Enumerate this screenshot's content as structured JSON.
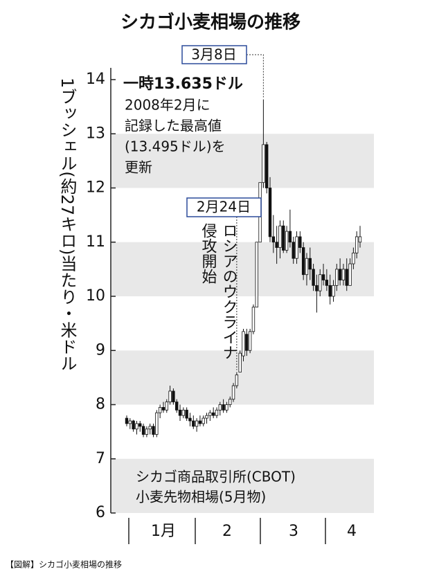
{
  "title": "シカゴ小麦相場の推移",
  "caption": "【図解】シカゴ小麦相場の推移",
  "chart_data": {
    "type": "candlestick",
    "y_label": "1ブッシェル(約27キロ)当たり・米ドル",
    "ylim": [
      6,
      14
    ],
    "yticks": [
      6,
      7,
      8,
      9,
      10,
      11,
      12,
      13,
      14
    ],
    "x_labels": [
      "1月",
      "2",
      "3",
      "4"
    ],
    "annotations": {
      "peak_date": "3月8日",
      "peak_value": "一時13.635ドル",
      "peak_note": [
        "2008年2月に",
        "記録した最高値",
        "(13.495ドル)を",
        "更新"
      ],
      "invasion_date": "2月24日",
      "invasion_note": [
        "ロシアのウクライナ",
        "侵攻開始"
      ]
    },
    "source": [
      "シカゴ商品取引所(CBOT)",
      "小麦先物相場(5月物)"
    ],
    "candles": [
      [
        7.75,
        7.8,
        7.6,
        7.65
      ],
      [
        7.65,
        7.75,
        7.55,
        7.7
      ],
      [
        7.7,
        7.72,
        7.5,
        7.55
      ],
      [
        7.55,
        7.7,
        7.45,
        7.65
      ],
      [
        7.65,
        7.7,
        7.5,
        7.6
      ],
      [
        7.6,
        7.65,
        7.4,
        7.45
      ],
      [
        7.45,
        7.6,
        7.4,
        7.55
      ],
      [
        7.55,
        7.65,
        7.45,
        7.6
      ],
      [
        7.6,
        7.65,
        7.4,
        7.45
      ],
      [
        7.45,
        7.9,
        7.4,
        7.85
      ],
      [
        7.85,
        8.0,
        7.75,
        7.95
      ],
      [
        7.95,
        8.05,
        7.85,
        7.9
      ],
      [
        7.9,
        8.1,
        7.85,
        8.05
      ],
      [
        8.05,
        8.35,
        8.0,
        8.25
      ],
      [
        8.25,
        8.3,
        8.0,
        8.05
      ],
      [
        8.05,
        8.1,
        7.85,
        7.9
      ],
      [
        7.9,
        8.0,
        7.7,
        7.8
      ],
      [
        7.8,
        7.95,
        7.75,
        7.9
      ],
      [
        7.9,
        7.95,
        7.7,
        7.75
      ],
      [
        7.75,
        7.85,
        7.6,
        7.7
      ],
      [
        7.7,
        7.8,
        7.55,
        7.6
      ],
      [
        7.6,
        7.75,
        7.5,
        7.7
      ],
      [
        7.7,
        7.8,
        7.6,
        7.65
      ],
      [
        7.65,
        7.8,
        7.6,
        7.75
      ],
      [
        7.75,
        7.85,
        7.65,
        7.8
      ],
      [
        7.8,
        7.9,
        7.7,
        7.85
      ],
      [
        7.85,
        7.95,
        7.75,
        7.8
      ],
      [
        7.8,
        7.95,
        7.75,
        7.9
      ],
      [
        7.9,
        8.05,
        7.8,
        8.0
      ],
      [
        8.0,
        8.1,
        7.85,
        7.9
      ],
      [
        7.9,
        8.05,
        7.85,
        8.0
      ],
      [
        8.0,
        8.15,
        7.95,
        8.1
      ],
      [
        8.1,
        8.4,
        8.05,
        8.35
      ],
      [
        8.35,
        8.6,
        8.3,
        8.55
      ],
      [
        8.6,
        9.0,
        8.6,
        8.95
      ],
      [
        8.9,
        9.4,
        8.8,
        9.35
      ],
      [
        9.3,
        9.4,
        8.9,
        9.0
      ],
      [
        9.0,
        9.4,
        8.95,
        9.35
      ],
      [
        9.35,
        9.85,
        9.3,
        9.8
      ],
      [
        9.8,
        11.0,
        9.8,
        11.0
      ],
      [
        11.0,
        12.1,
        11.0,
        12.1
      ],
      [
        12.1,
        13.635,
        12.0,
        12.8
      ],
      [
        12.8,
        12.85,
        11.9,
        12.0
      ],
      [
        12.0,
        12.2,
        11.0,
        11.1
      ],
      [
        11.1,
        11.5,
        10.8,
        11.0
      ],
      [
        11.0,
        11.3,
        10.6,
        10.9
      ],
      [
        10.9,
        11.4,
        10.7,
        11.3
      ],
      [
        11.3,
        11.4,
        10.8,
        10.85
      ],
      [
        10.85,
        11.3,
        10.8,
        11.2
      ],
      [
        11.2,
        11.6,
        10.9,
        11.0
      ],
      [
        11.0,
        11.1,
        10.6,
        10.7
      ],
      [
        10.7,
        11.2,
        10.6,
        11.1
      ],
      [
        11.1,
        11.2,
        10.8,
        10.9
      ],
      [
        10.9,
        11.0,
        10.3,
        10.4
      ],
      [
        10.4,
        10.8,
        10.2,
        10.7
      ],
      [
        10.7,
        10.9,
        10.3,
        10.5
      ],
      [
        10.5,
        10.6,
        10.1,
        10.2
      ],
      [
        10.2,
        10.4,
        9.7,
        10.1
      ],
      [
        10.1,
        10.5,
        10.0,
        10.4
      ],
      [
        10.4,
        10.6,
        10.2,
        10.3
      ],
      [
        10.3,
        10.5,
        10.1,
        10.2
      ],
      [
        10.2,
        10.4,
        9.85,
        10.0
      ],
      [
        10.0,
        10.3,
        9.9,
        10.2
      ],
      [
        10.2,
        10.6,
        10.1,
        10.5
      ],
      [
        10.5,
        10.7,
        10.2,
        10.3
      ],
      [
        10.3,
        10.6,
        10.2,
        10.5
      ],
      [
        10.5,
        10.7,
        10.1,
        10.2
      ],
      [
        10.2,
        10.7,
        10.2,
        10.6
      ],
      [
        10.6,
        10.9,
        10.5,
        10.8
      ],
      [
        10.8,
        11.2,
        10.7,
        11.1
      ],
      [
        11.0,
        11.3,
        10.9,
        11.1
      ]
    ]
  }
}
